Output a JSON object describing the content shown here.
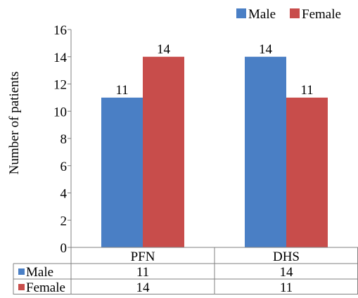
{
  "chart_data": {
    "type": "bar",
    "categories": [
      "PFN",
      "DHS"
    ],
    "series": [
      {
        "name": "Male",
        "values": [
          11,
          14
        ],
        "color": "#4a7fc5"
      },
      {
        "name": "Female",
        "values": [
          14,
          11
        ],
        "color": "#c84d4b"
      }
    ],
    "title": "",
    "xlabel": "",
    "ylabel": "Number of patients",
    "ylim": [
      0,
      16
    ],
    "yticks": [
      0,
      2,
      4,
      6,
      8,
      10,
      12,
      14,
      16
    ],
    "grid": false,
    "legend_position": "top-right",
    "data_labels": true,
    "data_table": true
  }
}
